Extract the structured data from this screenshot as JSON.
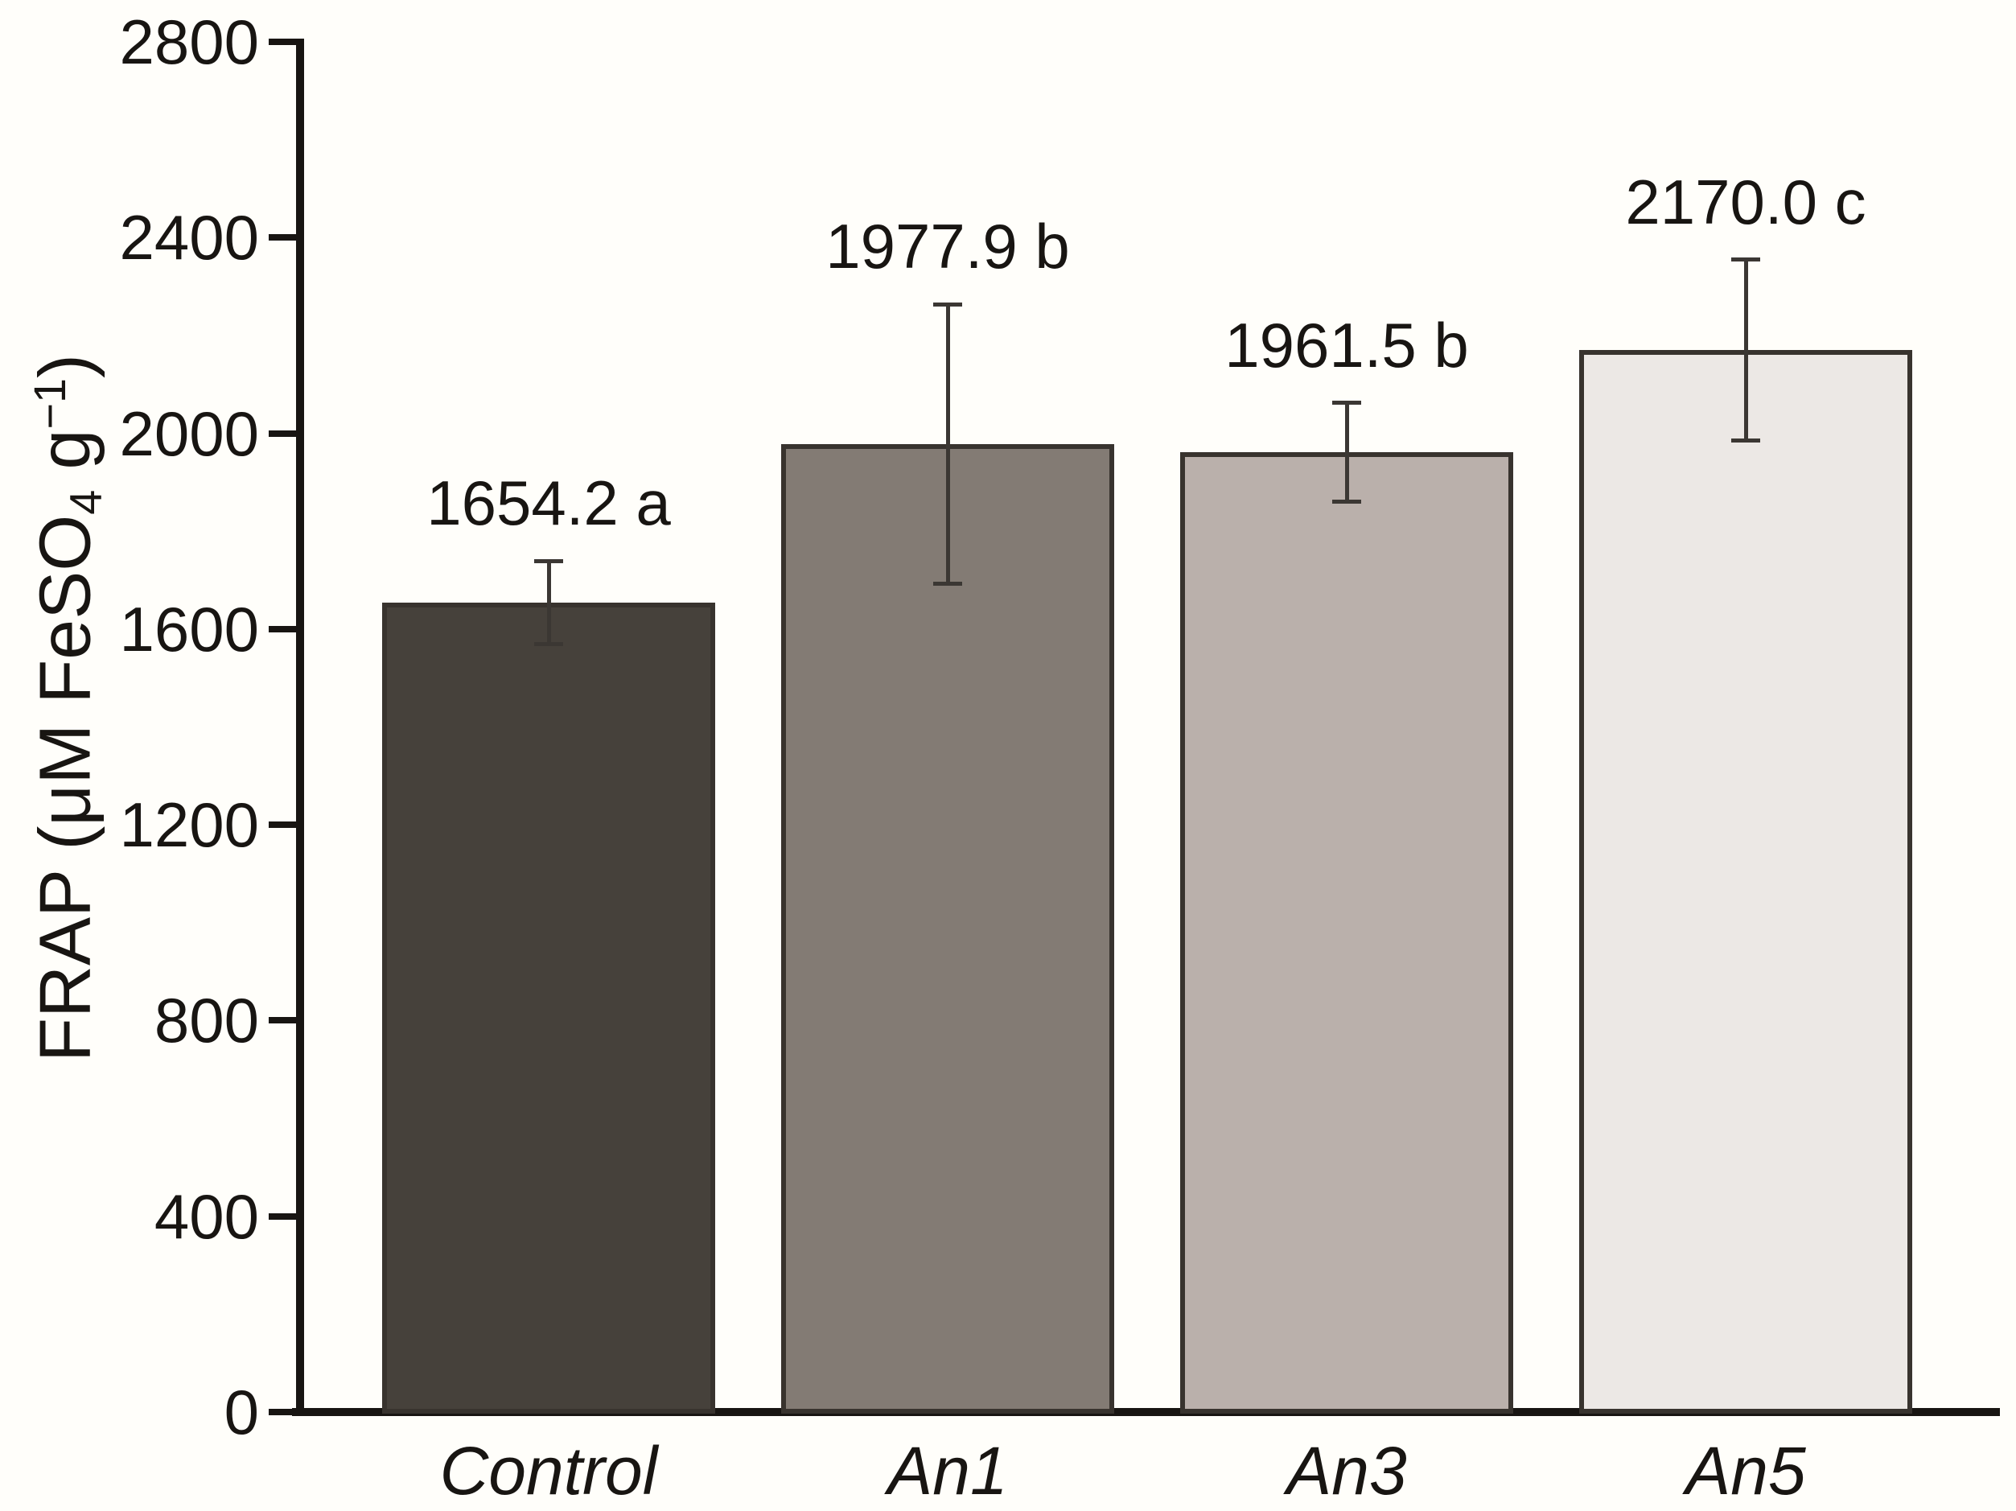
{
  "chart_data": {
    "type": "bar",
    "categories": [
      "Control",
      "An1",
      "An3",
      "An5"
    ],
    "values": [
      1654.2,
      1977.9,
      1961.5,
      2170.0
    ],
    "errors": [
      85,
      286,
      101,
      185
    ],
    "bar_labels": [
      "1654.2 a",
      "1977.9 b",
      "1961.5 b",
      "2170.0 c"
    ],
    "bar_colors": [
      "#46413b",
      "#837b74",
      "#bab0ab",
      "#ece8e5"
    ],
    "bar_border_color": "#38332e",
    "title": "",
    "xlabel": "",
    "ylabel": "FRAP (μM FeSO4 g−1)",
    "ylabel_parts": {
      "p1": "FRAP (μM FeSO",
      "sub": "4",
      "p2": " g",
      "sup": "−1",
      "p3": ")"
    },
    "ylim": [
      0,
      2800
    ],
    "yticks": [
      0,
      400,
      800,
      1200,
      1600,
      2000,
      2400,
      2800
    ],
    "grid": false,
    "legend": null
  },
  "colors": {
    "axis": "#181512",
    "error_bar": "#3b3733",
    "background": "#fffefa",
    "text": "#181512"
  }
}
